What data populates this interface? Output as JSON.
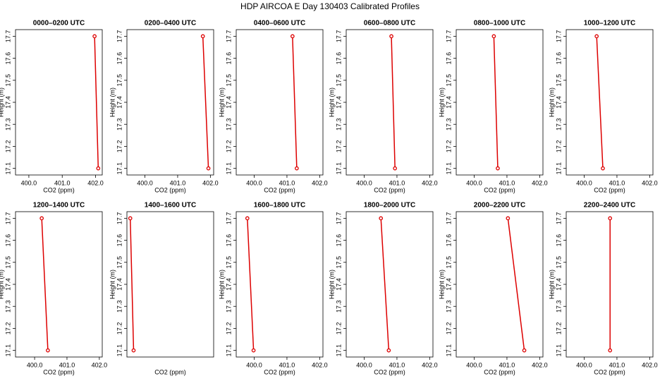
{
  "page_title": "HDP AIRCOA E  Day 130403  Calibrated Profiles",
  "chart_data": [
    {
      "type": "line",
      "title": "0000–0200 UTC",
      "x": [
        401.97,
        402.08
      ],
      "values": [
        17.7,
        17.1
      ],
      "xlim": [
        399.6,
        402.2
      ],
      "ylim": [
        17.07,
        17.73
      ],
      "xticks": [
        {
          "value": 400,
          "label": "400.0"
        },
        {
          "value": 401,
          "label": "401.0"
        },
        {
          "value": 402,
          "label": "402.0"
        }
      ],
      "yticks": [
        17.1,
        17.2,
        17.3,
        17.4,
        17.5,
        17.6,
        17.7
      ],
      "xlabel": "CO2 (ppm)",
      "ylabel": "Height (m)",
      "color": "#dd0000"
    },
    {
      "type": "line",
      "title": "0200–0400 UTC",
      "x": [
        401.77,
        401.94
      ],
      "values": [
        17.7,
        17.1
      ],
      "xlim": [
        399.45,
        402.1
      ],
      "ylim": [
        17.07,
        17.73
      ],
      "xticks": [
        {
          "value": 400,
          "label": "400.0"
        },
        {
          "value": 401,
          "label": "401.0"
        },
        {
          "value": 402,
          "label": "402.0"
        }
      ],
      "yticks": [
        17.1,
        17.2,
        17.3,
        17.4,
        17.5,
        17.6,
        17.7
      ],
      "xlabel": "CO2 (ppm)",
      "ylabel": "Height (m)",
      "color": "#dd0000"
    },
    {
      "type": "line",
      "title": "0400–0600 UTC",
      "x": [
        401.17,
        401.3
      ],
      "values": [
        17.7,
        17.1
      ],
      "xlim": [
        399.45,
        402.1
      ],
      "ylim": [
        17.07,
        17.73
      ],
      "xticks": [
        {
          "value": 400,
          "label": "400.0"
        },
        {
          "value": 401,
          "label": "401.0"
        },
        {
          "value": 402,
          "label": "402.0"
        }
      ],
      "yticks": [
        17.1,
        17.2,
        17.3,
        17.4,
        17.5,
        17.6,
        17.7
      ],
      "xlabel": "CO2 (ppm)",
      "ylabel": "Height (m)",
      "color": "#dd0000"
    },
    {
      "type": "line",
      "title": "0600–0800 UTC",
      "x": [
        400.83,
        400.94
      ],
      "values": [
        17.7,
        17.1
      ],
      "xlim": [
        399.45,
        402.1
      ],
      "ylim": [
        17.07,
        17.73
      ],
      "xticks": [
        {
          "value": 400,
          "label": "400.0"
        },
        {
          "value": 401,
          "label": "401.0"
        },
        {
          "value": 402,
          "label": "402.0"
        }
      ],
      "yticks": [
        17.1,
        17.2,
        17.3,
        17.4,
        17.5,
        17.6,
        17.7
      ],
      "xlabel": "CO2 (ppm)",
      "ylabel": "Height (m)",
      "color": "#dd0000"
    },
    {
      "type": "line",
      "title": "0800–1000 UTC",
      "x": [
        400.6,
        400.72
      ],
      "values": [
        17.7,
        17.1
      ],
      "xlim": [
        399.45,
        402.1
      ],
      "ylim": [
        17.07,
        17.73
      ],
      "xticks": [
        {
          "value": 400,
          "label": "400.0"
        },
        {
          "value": 401,
          "label": "401.0"
        },
        {
          "value": 402,
          "label": "402.0"
        }
      ],
      "yticks": [
        17.1,
        17.2,
        17.3,
        17.4,
        17.5,
        17.6,
        17.7
      ],
      "xlabel": "CO2 (ppm)",
      "ylabel": "Height (m)",
      "color": "#dd0000"
    },
    {
      "type": "line",
      "title": "1000–1200 UTC",
      "x": [
        400.38,
        400.57
      ],
      "values": [
        17.7,
        17.1
      ],
      "xlim": [
        399.45,
        402.1
      ],
      "ylim": [
        17.07,
        17.73
      ],
      "xticks": [
        {
          "value": 400,
          "label": "400.0"
        },
        {
          "value": 401,
          "label": "401.0"
        },
        {
          "value": 402,
          "label": "402.0"
        }
      ],
      "yticks": [
        17.1,
        17.2,
        17.3,
        17.4,
        17.5,
        17.6,
        17.7
      ],
      "xlabel": "CO2 (ppm)",
      "ylabel": "Height (m)",
      "color": "#dd0000"
    },
    {
      "type": "line",
      "title": "1200–1400 UTC",
      "x": [
        400.22,
        400.41
      ],
      "values": [
        17.7,
        17.1
      ],
      "xlim": [
        399.41,
        402.09
      ],
      "ylim": [
        17.07,
        17.73
      ],
      "xticks": [
        {
          "value": 400,
          "label": "400.0"
        },
        {
          "value": 401,
          "label": "401.0"
        },
        {
          "value": 402,
          "label": "402.0"
        }
      ],
      "yticks": [
        17.1,
        17.2,
        17.3,
        17.4,
        17.5,
        17.6,
        17.7
      ],
      "xlabel": "CO2 (ppm)",
      "ylabel": "Height (m)",
      "color": "#dd0000"
    },
    {
      "type": "line",
      "title": "1400–1600 UTC",
      "x": [
        399.8,
        399.9
      ],
      "values": [
        17.7,
        17.1
      ],
      "xlim": [
        399.7,
        402.3
      ],
      "ylim": [
        17.07,
        17.73
      ],
      "xticks": [],
      "yticks": [
        17.1,
        17.2,
        17.3,
        17.4,
        17.5,
        17.6,
        17.7
      ],
      "xlabel": "CO2 (ppm)",
      "ylabel": "Height (m)",
      "color": "#dd0000"
    },
    {
      "type": "line",
      "title": "1600–1800 UTC",
      "x": [
        399.79,
        399.98
      ],
      "values": [
        17.7,
        17.1
      ],
      "xlim": [
        399.45,
        402.1
      ],
      "ylim": [
        17.07,
        17.73
      ],
      "xticks": [
        {
          "value": 400,
          "label": "400.0"
        },
        {
          "value": 401,
          "label": "401.0"
        },
        {
          "value": 402,
          "label": "402.0"
        }
      ],
      "yticks": [
        17.1,
        17.2,
        17.3,
        17.4,
        17.5,
        17.6,
        17.7
      ],
      "xlabel": "CO2 (ppm)",
      "ylabel": "Height (m)",
      "color": "#dd0000"
    },
    {
      "type": "line",
      "title": "1800–2000 UTC",
      "x": [
        400.51,
        400.75
      ],
      "values": [
        17.7,
        17.1
      ],
      "xlim": [
        399.45,
        402.1
      ],
      "ylim": [
        17.07,
        17.73
      ],
      "xticks": [
        {
          "value": 400,
          "label": "400.0"
        },
        {
          "value": 401,
          "label": "401.0"
        },
        {
          "value": 402,
          "label": "402.0"
        }
      ],
      "yticks": [
        17.1,
        17.2,
        17.3,
        17.4,
        17.5,
        17.6,
        17.7
      ],
      "xlabel": "CO2 (ppm)",
      "ylabel": "Height (m)",
      "color": "#dd0000"
    },
    {
      "type": "line",
      "title": "2000–2200 UTC",
      "x": [
        401.03,
        401.53
      ],
      "values": [
        17.7,
        17.1
      ],
      "xlim": [
        399.45,
        402.1
      ],
      "ylim": [
        17.07,
        17.73
      ],
      "xticks": [
        {
          "value": 400,
          "label": "400.0"
        },
        {
          "value": 401,
          "label": "401.0"
        },
        {
          "value": 402,
          "label": "402.0"
        }
      ],
      "yticks": [
        17.1,
        17.2,
        17.3,
        17.4,
        17.5,
        17.6,
        17.7
      ],
      "xlabel": "CO2 (ppm)",
      "ylabel": "Height (m)",
      "color": "#dd0000"
    },
    {
      "type": "line",
      "title": "2200–2400 UTC",
      "x": [
        400.79,
        400.79
      ],
      "values": [
        17.7,
        17.1
      ],
      "xlim": [
        399.45,
        402.1
      ],
      "ylim": [
        17.07,
        17.73
      ],
      "xticks": [
        {
          "value": 400,
          "label": "400.0"
        },
        {
          "value": 401,
          "label": "401.0"
        },
        {
          "value": 402,
          "label": "402.0"
        }
      ],
      "yticks": [
        17.1,
        17.2,
        17.3,
        17.4,
        17.5,
        17.6,
        17.7
      ],
      "xlabel": "CO2 (ppm)",
      "ylabel": "Height (m)",
      "color": "#dd0000"
    }
  ]
}
